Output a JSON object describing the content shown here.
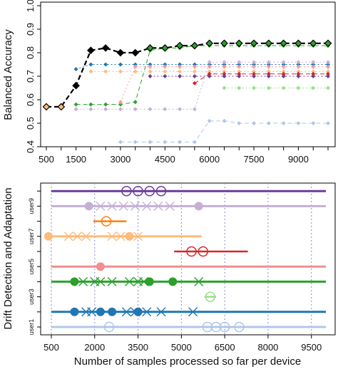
{
  "chart_data": [
    {
      "type": "line",
      "ylabel": "Balanced Accuracy",
      "ylim": [
        0.4,
        1.0
      ],
      "xlim": [
        500,
        10000
      ],
      "x_ticks": [
        "500",
        "1500",
        "3000",
        "4500",
        "6000",
        "7500",
        "9000"
      ],
      "x_tick_values": [
        500,
        1500,
        3000,
        4500,
        6000,
        7500,
        9000
      ],
      "y_ticks": [
        "0.4",
        "0.5",
        "0.6",
        "0.7",
        "0.8",
        "0.9",
        "1.0"
      ],
      "y_tick_values": [
        0.4,
        0.5,
        0.6,
        0.7,
        0.8,
        0.9,
        1.0
      ],
      "grid": false,
      "series": [
        {
          "color": "#000000",
          "marker": "diamond",
          "line": "dashed-solid",
          "highlight": true,
          "x": [
            500,
            1000,
            1500,
            2000,
            2500,
            3000,
            3500,
            4000,
            4500,
            5000,
            5500,
            6000,
            6500,
            7000,
            7500,
            8000,
            8500,
            9000,
            9500,
            10000
          ],
          "y": [
            0.57,
            0.57,
            0.66,
            0.81,
            0.82,
            0.8,
            0.8,
            0.82,
            0.82,
            0.83,
            0.83,
            0.84,
            0.84,
            0.84,
            0.84,
            0.84,
            0.84,
            0.84,
            0.84,
            0.84
          ]
        },
        {
          "color": "#2ca02c",
          "marker": "diamond",
          "line": "dashed",
          "x": [
            1500,
            2000,
            2500,
            3000,
            3500,
            4000,
            4500,
            5000,
            5500,
            6000,
            6500,
            7000,
            7500,
            8000,
            8500,
            9000,
            9500,
            10000
          ],
          "y": [
            0.58,
            0.58,
            0.58,
            0.58,
            0.59,
            0.81,
            0.82,
            0.82,
            0.83,
            0.83,
            0.83,
            0.83,
            0.83,
            0.83,
            0.83,
            0.83,
            0.83,
            0.83
          ]
        },
        {
          "color": "#1f77b4",
          "marker": "diamond",
          "line": "dotted",
          "x": [
            1500,
            2000,
            2500,
            3000,
            3500,
            4000,
            4500,
            5000,
            5500,
            6000,
            6500,
            7000,
            7500,
            8000,
            8500,
            9000,
            9500,
            10000
          ],
          "y": [
            0.73,
            0.75,
            0.75,
            0.75,
            0.75,
            0.75,
            0.75,
            0.75,
            0.75,
            0.75,
            0.75,
            0.75,
            0.75,
            0.75,
            0.75,
            0.75,
            0.75,
            0.75
          ]
        },
        {
          "color": "#ffbb78",
          "marker": "diamond",
          "line": "dotted",
          "x": [
            2000,
            2500,
            3000,
            3500,
            4000,
            4500,
            5000,
            5500,
            6000,
            6500,
            7000,
            7500,
            8000,
            8500,
            9000,
            9500,
            10000
          ],
          "y": [
            0.72,
            0.72,
            0.72,
            0.72,
            0.72,
            0.72,
            0.72,
            0.72,
            0.72,
            0.72,
            0.72,
            0.72,
            0.72,
            0.72,
            0.72,
            0.72,
            0.72
          ]
        },
        {
          "color": "#ff9896",
          "marker": "diamond",
          "line": "dotted",
          "x": [
            3000,
            3500,
            4000,
            4500,
            5000,
            5500,
            6000,
            6500,
            7000,
            7500,
            8000,
            8500,
            9000,
            9500,
            10000
          ],
          "y": [
            0.59,
            0.74,
            0.74,
            0.74,
            0.74,
            0.74,
            0.74,
            0.74,
            0.74,
            0.74,
            0.74,
            0.74,
            0.74,
            0.74,
            0.74
          ]
        },
        {
          "color": "#d62728",
          "marker": "diamond",
          "line": "dashed",
          "x": [
            5500,
            6000,
            6500,
            7000,
            7500,
            8000,
            8500,
            9000,
            9500,
            10000
          ],
          "y": [
            0.67,
            0.71,
            0.71,
            0.71,
            0.71,
            0.71,
            0.71,
            0.71,
            0.71,
            0.71
          ]
        },
        {
          "color": "#6a3d9a",
          "marker": "diamond",
          "line": "dotted",
          "x": [
            4000,
            4500,
            5000,
            5500,
            6000,
            6500,
            7000,
            7500,
            8000,
            8500,
            9000,
            9500,
            10000
          ],
          "y": [
            0.7,
            0.7,
            0.7,
            0.7,
            0.7,
            0.7,
            0.7,
            0.7,
            0.7,
            0.7,
            0.7,
            0.7,
            0.7
          ]
        },
        {
          "color": "#c5b0d5",
          "marker": "diamond",
          "line": "dotted",
          "x": [
            1500,
            2000,
            2500,
            3000,
            3500,
            4000,
            4500,
            5000,
            5500,
            6000,
            6500,
            7000,
            7500,
            8000,
            8500,
            9000,
            9500,
            10000
          ],
          "y": [
            0.56,
            0.56,
            0.56,
            0.56,
            0.56,
            0.56,
            0.56,
            0.56,
            0.56,
            0.76,
            0.76,
            0.76,
            0.76,
            0.76,
            0.76,
            0.76,
            0.76,
            0.76
          ]
        },
        {
          "color": "#98df8a",
          "marker": "diamond",
          "line": "dotted",
          "x": [
            6500,
            7000,
            7500,
            8000,
            8500,
            9000,
            9500,
            10000
          ],
          "y": [
            0.65,
            0.65,
            0.65,
            0.65,
            0.65,
            0.65,
            0.65,
            0.65
          ]
        },
        {
          "color": "#aec7e8",
          "marker": "diamond",
          "line": "dashed",
          "x": [
            3000,
            3500,
            4000,
            4500,
            5000,
            5500,
            6000,
            6500,
            7000,
            7500,
            8000,
            8500,
            9000,
            9500,
            10000
          ],
          "y": [
            0.42,
            0.42,
            0.42,
            0.42,
            0.42,
            0.42,
            0.51,
            0.51,
            0.5,
            0.5,
            0.5,
            0.5,
            0.5,
            0.5,
            0.5
          ]
        }
      ]
    },
    {
      "type": "scatter",
      "xlabel": "Number of samples processed so far per device",
      "ylabel": "Drift Detection and Adaptation",
      "xlim": [
        500,
        10000
      ],
      "x_ticks": [
        "500",
        "2000",
        "3500",
        "5000",
        "6500",
        "8000",
        "9500"
      ],
      "x_tick_values": [
        500,
        2000,
        3500,
        5000,
        6500,
        8000,
        9500
      ],
      "y_ticks": [
        "user1",
        "user3",
        "user5",
        "user7",
        "user9"
      ],
      "y_tick_rows": [
        1,
        3,
        5,
        7,
        9
      ],
      "grid": "vertical-dotted",
      "rows": [
        {
          "row": 1,
          "color": "#aec7e8",
          "line": [
            0,
            10000
          ],
          "circles": [
            2500,
            5900,
            6200,
            6500,
            7000
          ],
          "dots": [],
          "crosses": []
        },
        {
          "row": 2,
          "color": "#1f77b4",
          "line": [
            0,
            10000
          ],
          "circles": [],
          "dots": [
            1300,
            2200,
            2600,
            3500
          ],
          "crosses": [
            1700,
            1900,
            3100,
            3400,
            3800,
            4300,
            5400
          ]
        },
        {
          "row": 3,
          "color": "#98df8a",
          "line": [
            5800,
            6200
          ],
          "circles": [
            6000
          ],
          "dots": [],
          "crosses": []
        },
        {
          "row": 4,
          "color": "#2ca02c",
          "line": [
            0,
            10000
          ],
          "circles": [],
          "dots": [
            1300,
            3900,
            4700
          ],
          "crosses": [
            1600,
            2000,
            2200,
            2600,
            3200,
            3500,
            3700,
            5600
          ]
        },
        {
          "row": 5,
          "color": "#f28e8e",
          "line": [
            0,
            10000
          ],
          "circles": [],
          "dots": [
            2200
          ],
          "crosses": []
        },
        {
          "row": 6,
          "color": "#d62728",
          "line": [
            4750,
            7300
          ],
          "circles": [
            5350,
            5750
          ],
          "dots": [],
          "crosses": []
        },
        {
          "row": 7,
          "color": "#ffbb78",
          "line": [
            0,
            5700
          ],
          "circles": [],
          "dots": [
            400,
            3200
          ],
          "crosses": [
            1100,
            1400,
            1700,
            2600,
            2900,
            3500
          ]
        },
        {
          "row": 8,
          "color": "#ff7f0e",
          "line": [
            1950,
            3100
          ],
          "circles": [
            2400
          ],
          "dots": [],
          "crosses": []
        },
        {
          "row": 9,
          "color": "#c5b0d5",
          "line": [
            0,
            10000
          ],
          "circles": [],
          "dots": [
            1800,
            5600
          ],
          "crosses": [
            2200,
            2600,
            3000,
            3400,
            3800,
            4200,
            4600
          ]
        },
        {
          "row": 10,
          "color": "#6a3d9a",
          "line": [
            0,
            10000
          ],
          "circles": [
            3100,
            3500,
            3900,
            4300
          ],
          "dots": [],
          "crosses": []
        }
      ]
    }
  ]
}
